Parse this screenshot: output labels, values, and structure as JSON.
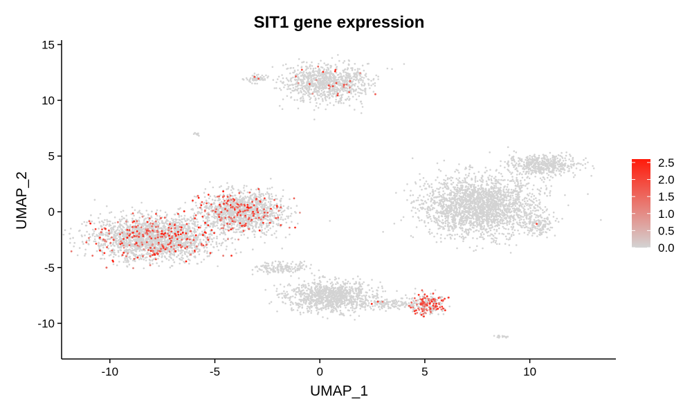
{
  "chart_data": {
    "type": "scatter",
    "title": "SIT1 gene expression",
    "xlabel": "UMAP_1",
    "ylabel": "UMAP_2",
    "xlim": [
      -12.3,
      14.1
    ],
    "ylim": [
      -13.2,
      15.4
    ],
    "x_ticks": [
      -10,
      -5,
      0,
      5,
      10
    ],
    "y_ticks": [
      -10,
      -5,
      0,
      5,
      10,
      15
    ],
    "x_tick_labels": [
      "-10",
      "-5",
      "0",
      "5",
      "10"
    ],
    "y_tick_labels": [
      "-10",
      "-5",
      "0",
      "5",
      "10",
      "15"
    ],
    "grid": false,
    "legend": {
      "placement": "right",
      "type": "color-gradient",
      "low_color": "#d3d3d3",
      "high_color": "#ff1a0a",
      "range": [
        0,
        2.6
      ],
      "labels": [
        "2.5",
        "2.0",
        "1.5",
        "1.0",
        "0.5",
        "0.0"
      ],
      "values": [
        2.5,
        2.0,
        1.5,
        1.0,
        0.5,
        0.0
      ]
    },
    "clusters": [
      {
        "region": "top-center",
        "center": [
          0.3,
          11.6
        ],
        "spread": [
          1.3,
          1.1
        ],
        "points": 1000,
        "expressing_fraction": 0.02
      },
      {
        "region": "top-center-small",
        "center": [
          -3.0,
          11.9
        ],
        "spread": [
          0.35,
          0.25
        ],
        "points": 60,
        "expressing_fraction": 0.04
      },
      {
        "region": "top-isolated",
        "center": [
          -5.9,
          7.0
        ],
        "spread": [
          0.1,
          0.1
        ],
        "points": 10,
        "expressing_fraction": 0.0
      },
      {
        "region": "left-large",
        "center": [
          -7.9,
          -2.4
        ],
        "spread": [
          1.9,
          1.3
        ],
        "points": 2800,
        "expressing_fraction": 0.1
      },
      {
        "region": "left-center-band",
        "center": [
          -3.7,
          0.0
        ],
        "spread": [
          1.3,
          1.2
        ],
        "points": 1400,
        "expressing_fraction": 0.11
      },
      {
        "region": "right-large",
        "center": [
          7.6,
          0.5
        ],
        "spread": [
          1.8,
          1.8
        ],
        "points": 2200,
        "expressing_fraction": 0.0
      },
      {
        "region": "right-upper-arm",
        "center": [
          10.6,
          4.2
        ],
        "spread": [
          1.1,
          0.6
        ],
        "points": 500,
        "expressing_fraction": 0.0
      },
      {
        "region": "right-lower-lobe",
        "center": [
          10.3,
          -1.2
        ],
        "spread": [
          0.5,
          0.6
        ],
        "points": 140,
        "expressing_fraction": 0.01
      },
      {
        "region": "bottom-center",
        "center": [
          0.5,
          -7.6
        ],
        "spread": [
          1.4,
          0.9
        ],
        "points": 1000,
        "expressing_fraction": 0.0
      },
      {
        "region": "bottom-left-arm",
        "center": [
          -1.8,
          -5.0
        ],
        "spread": [
          0.8,
          0.4
        ],
        "points": 150,
        "expressing_fraction": 0.0
      },
      {
        "region": "bottom-right-arm",
        "center": [
          3.3,
          -8.3
        ],
        "spread": [
          1.0,
          0.3
        ],
        "points": 150,
        "expressing_fraction": 0.02
      },
      {
        "region": "bottom-right-lobe",
        "center": [
          5.1,
          -8.3
        ],
        "spread": [
          0.55,
          0.6
        ],
        "points": 230,
        "expressing_fraction": 0.45
      },
      {
        "region": "bottom-right-isolated",
        "center": [
          8.7,
          -11.2
        ],
        "spread": [
          0.2,
          0.1
        ],
        "points": 15,
        "expressing_fraction": 0.0
      }
    ]
  }
}
